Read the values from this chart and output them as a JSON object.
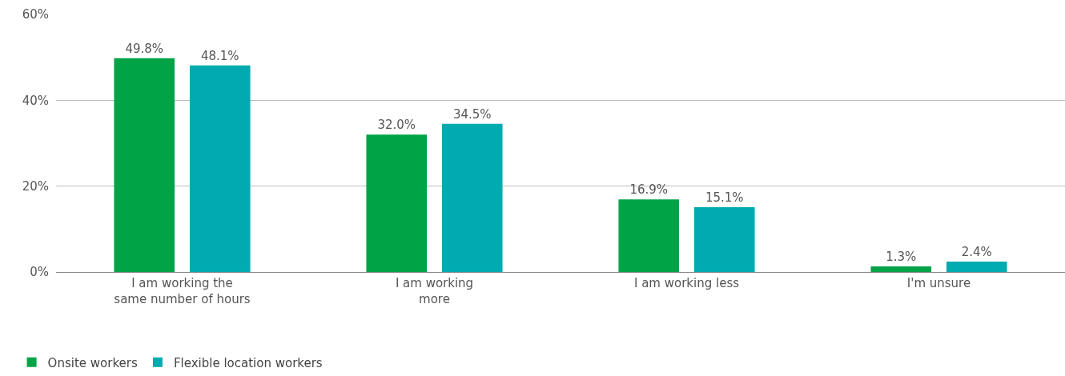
{
  "chart_data": {
    "type": "bar",
    "categories": [
      "I am working the\nsame number of hours",
      "I am working\nmore",
      "I am working less",
      "I'm unsure"
    ],
    "series": [
      {
        "name": "Onsite workers",
        "color": "#00a346",
        "values": [
          49.8,
          32.0,
          16.9,
          1.3
        ],
        "value_labels": [
          "49.8%",
          "32.0%",
          "16.9%",
          "1.3%"
        ]
      },
      {
        "name": "Flexible location workers",
        "color": "#00abb0",
        "values": [
          48.1,
          34.5,
          15.1,
          2.4
        ],
        "value_labels": [
          "48.1%",
          "34.5%",
          "15.1%",
          "2.4%"
        ]
      }
    ],
    "ylim": [
      0,
      60
    ],
    "yticks": [
      {
        "value": 0,
        "label": "0%"
      },
      {
        "value": 20,
        "label": "20%"
      },
      {
        "value": 40,
        "label": "40%"
      },
      {
        "value": 60,
        "label": "60%"
      }
    ],
    "grid": "y",
    "legend": "bottom left"
  }
}
